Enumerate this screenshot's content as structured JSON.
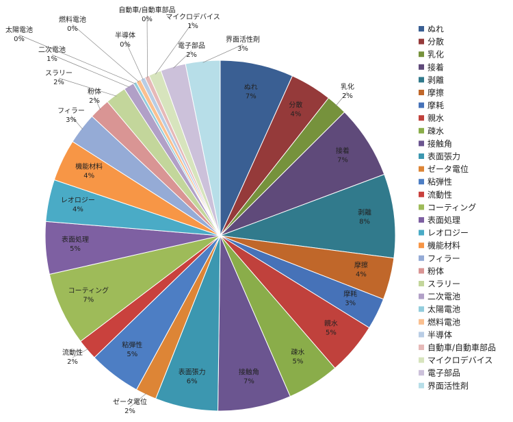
{
  "chart_data": {
    "type": "pie",
    "legend_position": "right",
    "series": [
      {
        "name": "ぬれ",
        "value": 7,
        "label": "7%",
        "color": "#3a5f93"
      },
      {
        "name": "分散",
        "value": 4,
        "label": "4%",
        "color": "#953a3a"
      },
      {
        "name": "乳化",
        "value": 2,
        "label": "2%",
        "color": "#76923c"
      },
      {
        "name": "接着",
        "value": 7,
        "label": "7%",
        "color": "#5f4a7a"
      },
      {
        "name": "剥離",
        "value": 8,
        "label": "8%",
        "color": "#317a8c"
      },
      {
        "name": "摩擦",
        "value": 4,
        "label": "4%",
        "color": "#c0672a"
      },
      {
        "name": "摩耗",
        "value": 3,
        "label": "3%",
        "color": "#4672b8"
      },
      {
        "name": "親水",
        "value": 5,
        "label": "5%",
        "color": "#c0413c"
      },
      {
        "name": "疎水",
        "value": 5,
        "label": "5%",
        "color": "#8aad4a"
      },
      {
        "name": "接触角",
        "value": 7,
        "label": "7%",
        "color": "#6b5590"
      },
      {
        "name": "表面張力",
        "value": 6,
        "label": "6%",
        "color": "#3c97b0"
      },
      {
        "name": "ゼータ電位",
        "value": 2,
        "label": "2%",
        "color": "#dd8536"
      },
      {
        "name": "粘弾性",
        "value": 5,
        "label": "5%",
        "color": "#4d7ec4"
      },
      {
        "name": "流動性",
        "value": 2,
        "label": "2%",
        "color": "#c9413d"
      },
      {
        "name": "コーティング",
        "value": 7,
        "label": "7%",
        "color": "#9ebb59"
      },
      {
        "name": "表面処理",
        "value": 5,
        "label": "5%",
        "color": "#7e60a2"
      },
      {
        "name": "レオロジー",
        "value": 4,
        "label": "4%",
        "color": "#4aabc6"
      },
      {
        "name": "機能材料",
        "value": 4,
        "label": "4%",
        "color": "#f79646"
      },
      {
        "name": "フィラー",
        "value": 3,
        "label": "3%",
        "color": "#95abd6"
      },
      {
        "name": "粉体",
        "value": 2,
        "label": "2%",
        "color": "#d99594"
      },
      {
        "name": "スラリー",
        "value": 2,
        "label": "2%",
        "color": "#c3d69b"
      },
      {
        "name": "二次電池",
        "value": 1,
        "label": "1%",
        "color": "#b1a0c7"
      },
      {
        "name": "太陽電池",
        "value": 0.3,
        "label": "0%",
        "color": "#93cddd"
      },
      {
        "name": "燃料電池",
        "value": 0.45,
        "label": "0%",
        "color": "#fac090"
      },
      {
        "name": "半導体",
        "value": 0.45,
        "label": "0%",
        "color": "#b9cde5"
      },
      {
        "name": "自動車/自動車部品",
        "value": 0.45,
        "label": "0%",
        "color": "#e6b9b8"
      },
      {
        "name": "マイクロデバイス",
        "value": 1.2,
        "label": "1%",
        "color": "#d7e4bd"
      },
      {
        "name": "電子部品",
        "value": 2.4,
        "label": "2%",
        "color": "#ccc1da"
      },
      {
        "name": "界面活性剤",
        "value": 3.3,
        "label": "3%",
        "color": "#b7dee8"
      }
    ]
  }
}
